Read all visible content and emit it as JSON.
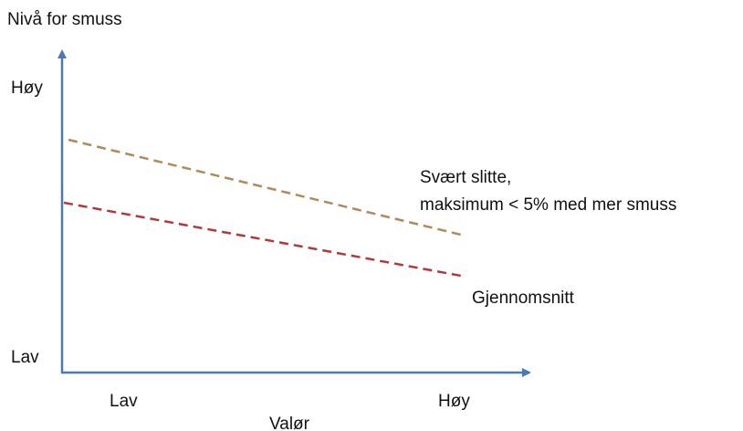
{
  "y_axis": {
    "title": "Nivå for smuss",
    "high": "Høy",
    "low": "Lav"
  },
  "x_axis": {
    "title": "Valør",
    "low": "Lav",
    "high": "Høy"
  },
  "lines": [
    {
      "label": [
        "Svært slitte,",
        "maksimum < 5% med mer smuss"
      ]
    },
    {
      "label": [
        "Gjennomsnitt"
      ]
    }
  ]
}
